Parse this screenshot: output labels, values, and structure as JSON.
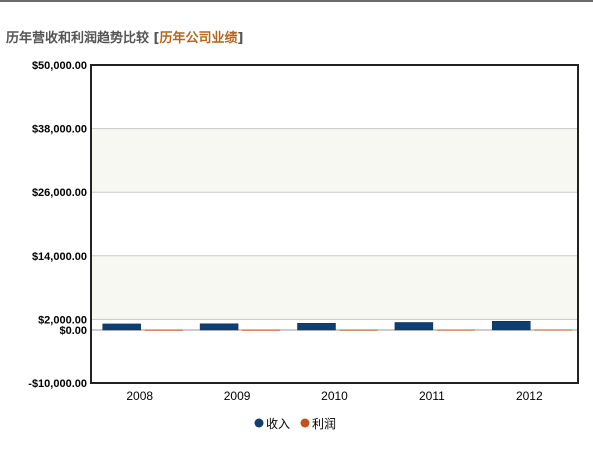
{
  "header": {
    "title": "历年营收和利润趋势比较",
    "bracket_open": "[",
    "link_label": "历年公司业绩",
    "bracket_close": "]"
  },
  "chart_data": {
    "type": "bar",
    "categories": [
      "2008",
      "2009",
      "2010",
      "2011",
      "2012"
    ],
    "series": [
      {
        "name": "收入",
        "color": "#0f3f72",
        "values": [
          1150,
          1180,
          1280,
          1420,
          1650
        ]
      },
      {
        "name": "利润",
        "color": "#c2521a",
        "values": [
          60,
          60,
          70,
          80,
          90
        ]
      }
    ],
    "ylim": [
      -10000,
      50000
    ],
    "y_ticks": [
      {
        "value": 50000,
        "label": "$50,000.00"
      },
      {
        "value": 38000,
        "label": "$38,000.00"
      },
      {
        "value": 26000,
        "label": "$26,000.00"
      },
      {
        "value": 14000,
        "label": "$14,000.00"
      },
      {
        "value": 2000,
        "label": "$2,000.00"
      },
      {
        "value": 0,
        "label": "$0.00"
      },
      {
        "value": -10000,
        "label": "-$10,000.00"
      }
    ],
    "grid": true,
    "legend_position": "bottom-center"
  }
}
